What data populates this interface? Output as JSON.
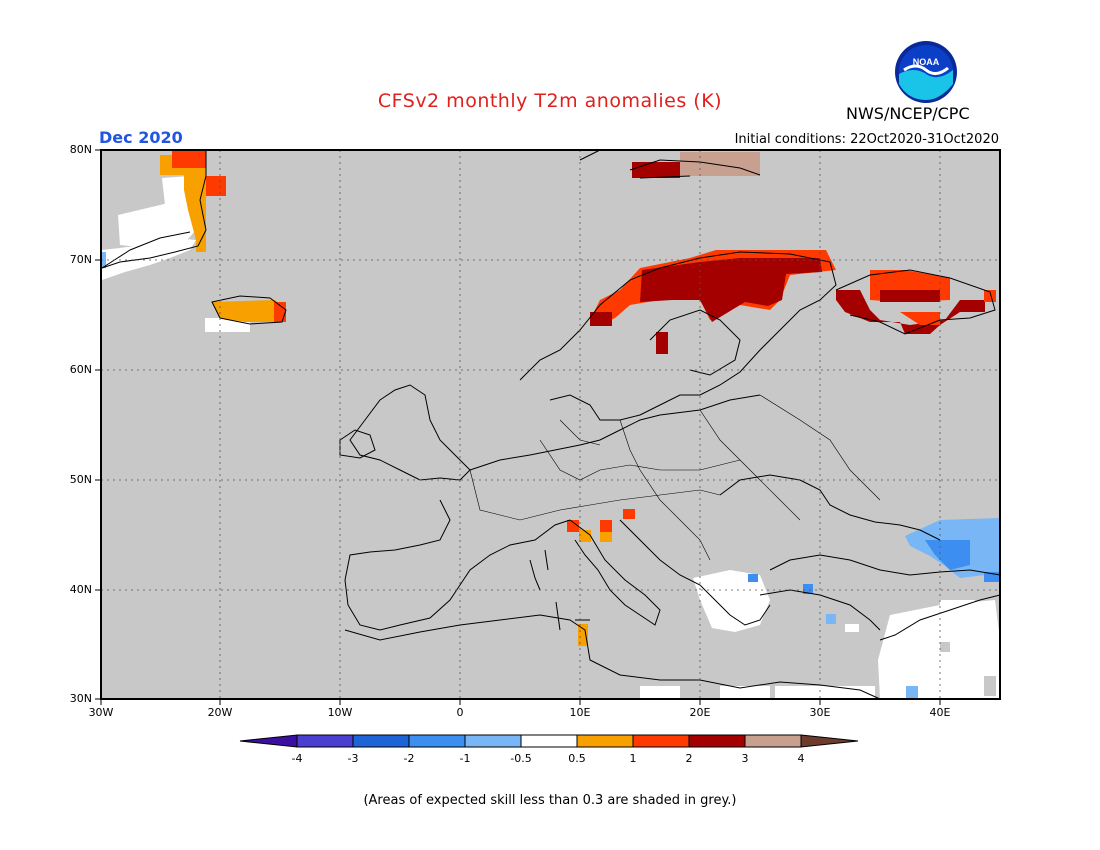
{
  "header": {
    "title": "CFSv2 monthly T2m anomalies (K)",
    "agency": "NWS/NCEP/CPC",
    "logo_text": "NOAA",
    "month": "Dec 2020",
    "initial_conditions": "Initial conditions: 22Oct2020-31Oct2020"
  },
  "map": {
    "lat_labels": [
      "80N",
      "70N",
      "60N",
      "50N",
      "40N",
      "30N"
    ],
    "lon_labels": [
      "30W",
      "20W",
      "10W",
      "0",
      "10E",
      "20E",
      "30E",
      "40E"
    ],
    "lon_range": [
      -30,
      45
    ],
    "lat_range": [
      30,
      80
    ],
    "background_color": "#c8c8c8"
  },
  "colorbar": {
    "labels": [
      "-4",
      "-3",
      "-2",
      "-1",
      "-0.5",
      "0.5",
      "1",
      "2",
      "3",
      "4"
    ],
    "colors": [
      "#3b0fa0",
      "#4a3fd0",
      "#1e64d6",
      "#3c8ff0",
      "#78b6f5",
      "#ffffff",
      "#f7a000",
      "#ff3a00",
      "#a50000",
      "#c8a090",
      "#6e3c2e"
    ]
  },
  "footnote": "(Areas of expected skill less than 0.3 are shaded in grey.)",
  "chart_data": {
    "type": "heatmap",
    "description_units": "K",
    "regions": [
      {
        "name": "Greenland east coast",
        "lon": [
          -25,
          -21
        ],
        "lat": [
          72,
          80
        ],
        "category": "1 to 2"
      },
      {
        "name": "Iceland",
        "lon": [
          -20,
          -15
        ],
        "lat": [
          64,
          66
        ],
        "category": "0.5 to 1"
      },
      {
        "name": "Svalbard",
        "lon": [
          15,
          28
        ],
        "lat": [
          77,
          79
        ],
        "category": "2 to 4"
      },
      {
        "name": "Northern Scandinavia",
        "lon": [
          15,
          31
        ],
        "lat": [
          64,
          71
        ],
        "category": "2 to 3"
      },
      {
        "name": "Kola / Northwest Russia",
        "lon": [
          32,
          45
        ],
        "lat": [
          64,
          69
        ],
        "category": "1 to 3"
      },
      {
        "name": "Northern Italy / Alps",
        "lon": [
          9,
          15
        ],
        "lat": [
          44,
          47
        ],
        "category": "0.5 to 2"
      },
      {
        "name": "Tunisia",
        "lon": [
          10,
          11
        ],
        "lat": [
          35,
          36
        ],
        "category": "0.5 to 1"
      },
      {
        "name": "Caucasus",
        "lon": [
          37,
          45
        ],
        "lat": [
          40,
          46
        ],
        "category": "-2 to -0.5"
      }
    ]
  }
}
